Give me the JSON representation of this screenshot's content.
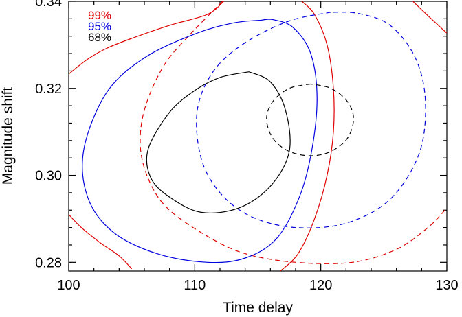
{
  "chart_data": {
    "type": "contour",
    "xlabel": "Time delay",
    "ylabel": "Magnitude shift",
    "xlim": [
      100,
      130
    ],
    "ylim": [
      0.278,
      0.34
    ],
    "xticks": [
      100,
      110,
      120,
      130
    ],
    "xtick_labels": [
      "100",
      "110",
      "120",
      "130"
    ],
    "yticks": [
      0.28,
      0.3,
      0.32,
      0.34
    ],
    "ytick_labels": [
      "0.28",
      "0.30",
      "0.32",
      "0.34"
    ],
    "legend": [
      {
        "label": "99%",
        "color": "#e00000"
      },
      {
        "label": "95%",
        "color": "#0000e0"
      },
      {
        "label": "68%",
        "color": "#000000"
      }
    ],
    "legend_position": "top-left",
    "series": [
      {
        "level": "99%",
        "color": "#e00000",
        "dash": "solid",
        "segments": [
          [
            [
              100.0,
              0.3233
            ],
            [
              101.5,
              0.3267
            ],
            [
              103.0,
              0.3292
            ],
            [
              105.0,
              0.3315
            ],
            [
              108.0,
              0.3345
            ],
            [
              111.0,
              0.337
            ],
            [
              112.3,
              0.34
            ]
          ],
          [
            [
              100.0,
              0.291
            ],
            [
              101.0,
              0.288
            ],
            [
              102.5,
              0.2845
            ],
            [
              104.0,
              0.2815
            ],
            [
              105.0,
              0.2785
            ]
          ],
          [
            [
              118.5,
              0.34
            ],
            [
              119.5,
              0.337
            ],
            [
              120.5,
              0.33
            ],
            [
              121.0,
              0.32
            ],
            [
              121.0,
              0.31
            ],
            [
              120.5,
              0.3
            ],
            [
              119.5,
              0.29
            ],
            [
              118.2,
              0.282
            ],
            [
              116.8,
              0.278
            ]
          ],
          [
            [
              127.3,
              0.34
            ],
            [
              128.5,
              0.3367
            ],
            [
              130.0,
              0.3327
            ]
          ]
        ]
      },
      {
        "level": "99%",
        "color": "#e00000",
        "dash": "dashed",
        "segments": [
          [
            [
              112.2,
              0.34
            ],
            [
              109.5,
              0.332
            ],
            [
              107.5,
              0.325
            ],
            [
              106.0,
              0.315
            ],
            [
              105.7,
              0.306
            ],
            [
              106.5,
              0.298
            ],
            [
              108.0,
              0.292
            ],
            [
              111.0,
              0.286
            ],
            [
              114.0,
              0.282
            ],
            [
              118.0,
              0.28
            ],
            [
              122.5,
              0.28
            ],
            [
              126.0,
              0.283
            ],
            [
              128.5,
              0.288
            ],
            [
              130.0,
              0.2925
            ]
          ]
        ]
      },
      {
        "level": "95%",
        "color": "#0000e0",
        "dash": "solid",
        "segments": [
          [
            [
              115.3,
              0.3357
            ],
            [
              113.0,
              0.335
            ],
            [
              110.0,
              0.3325
            ],
            [
              106.0,
              0.327
            ],
            [
              103.0,
              0.319
            ],
            [
              101.2,
              0.306
            ],
            [
              101.5,
              0.295
            ],
            [
              103.5,
              0.287
            ],
            [
              107.0,
              0.282
            ],
            [
              111.0,
              0.28
            ],
            [
              114.0,
              0.281
            ],
            [
              116.5,
              0.2855
            ],
            [
              118.3,
              0.295
            ],
            [
              119.3,
              0.306
            ],
            [
              119.7,
              0.318
            ],
            [
              119.2,
              0.328
            ],
            [
              117.8,
              0.334
            ],
            [
              116.2,
              0.3358
            ],
            [
              115.3,
              0.3357
            ]
          ]
        ]
      },
      {
        "level": "95%",
        "color": "#0000e0",
        "dash": "dashed",
        "segments": [
          [
            [
              120.8,
              0.3375
            ],
            [
              117.5,
              0.3355
            ],
            [
              114.0,
              0.3305
            ],
            [
              111.5,
              0.324
            ],
            [
              110.2,
              0.315
            ],
            [
              110.5,
              0.304
            ],
            [
              112.0,
              0.296
            ],
            [
              114.5,
              0.2905
            ],
            [
              118.0,
              0.288
            ],
            [
              122.0,
              0.289
            ],
            [
              125.5,
              0.2945
            ],
            [
              127.8,
              0.305
            ],
            [
              128.3,
              0.317
            ],
            [
              127.5,
              0.327
            ],
            [
              125.5,
              0.3345
            ],
            [
              123.0,
              0.3372
            ],
            [
              120.8,
              0.3375
            ]
          ]
        ]
      },
      {
        "level": "68%",
        "color": "#000000",
        "dash": "solid",
        "segments": [
          [
            [
              114.3,
              0.3238
            ],
            [
              112.0,
              0.3225
            ],
            [
              110.0,
              0.3195
            ],
            [
              108.0,
              0.3145
            ],
            [
              106.3,
              0.306
            ],
            [
              106.5,
              0.2995
            ],
            [
              108.0,
              0.295
            ],
            [
              110.5,
              0.2915
            ],
            [
              113.5,
              0.2925
            ],
            [
              116.0,
              0.2975
            ],
            [
              117.5,
              0.3055
            ],
            [
              117.2,
              0.315
            ],
            [
              116.0,
              0.3215
            ],
            [
              114.3,
              0.3238
            ]
          ]
        ]
      },
      {
        "level": "68%",
        "color": "#000000",
        "dash": "dashed",
        "segments": [
          [
            [
              119.2,
              0.321
            ],
            [
              117.5,
              0.32
            ],
            [
              116.2,
              0.317
            ],
            [
              115.7,
              0.313
            ],
            [
              116.2,
              0.3085
            ],
            [
              117.5,
              0.3055
            ],
            [
              119.2,
              0.3045
            ],
            [
              120.8,
              0.3055
            ],
            [
              122.1,
              0.3085
            ],
            [
              122.6,
              0.313
            ],
            [
              122.1,
              0.317
            ],
            [
              120.8,
              0.32
            ],
            [
              119.2,
              0.321
            ]
          ]
        ]
      }
    ]
  }
}
